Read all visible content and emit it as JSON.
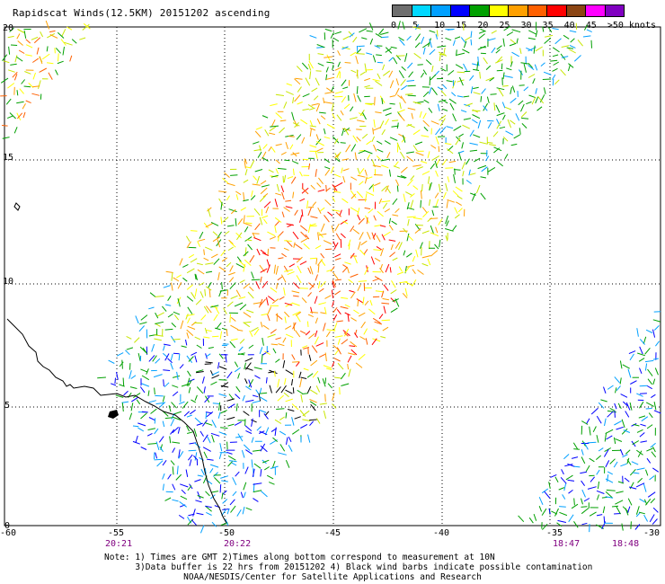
{
  "title": "Rapidscat Winds(12.5KM) 20151202 ascending",
  "legend": {
    "labels": [
      "0",
      "5",
      "10",
      "15",
      "20",
      "25",
      "30",
      "35",
      "40",
      "45",
      ">50 knots"
    ],
    "colors": [
      "#6e6e6e",
      "#00d8ff",
      "#00a0ff",
      "#0000ff",
      "#00a000",
      "#ffff00",
      "#ffa000",
      "#ff6000",
      "#ff0000",
      "#8b4513",
      "#ff00ff",
      "#8000c0"
    ]
  },
  "map": {
    "lat_labels": [
      "20",
      "15",
      "10",
      "5",
      "0"
    ],
    "lon_labels": [
      "-60",
      "-55",
      "-50",
      "-45",
      "-40",
      "-35",
      "-30"
    ],
    "time_labels": [
      "20:21",
      "20:22",
      "18:47",
      "18:48"
    ]
  },
  "notes": {
    "line1": "Note: 1) Times are GMT 2)Times along bottom correspond to measurement at 10N",
    "line2": "      3)Data buffer is 22 hrs from 20151202 4) Black wind barbs indicate possible contamination"
  },
  "credit": "NOAA/NESDIS/Center for Satellite Applications and Research"
}
